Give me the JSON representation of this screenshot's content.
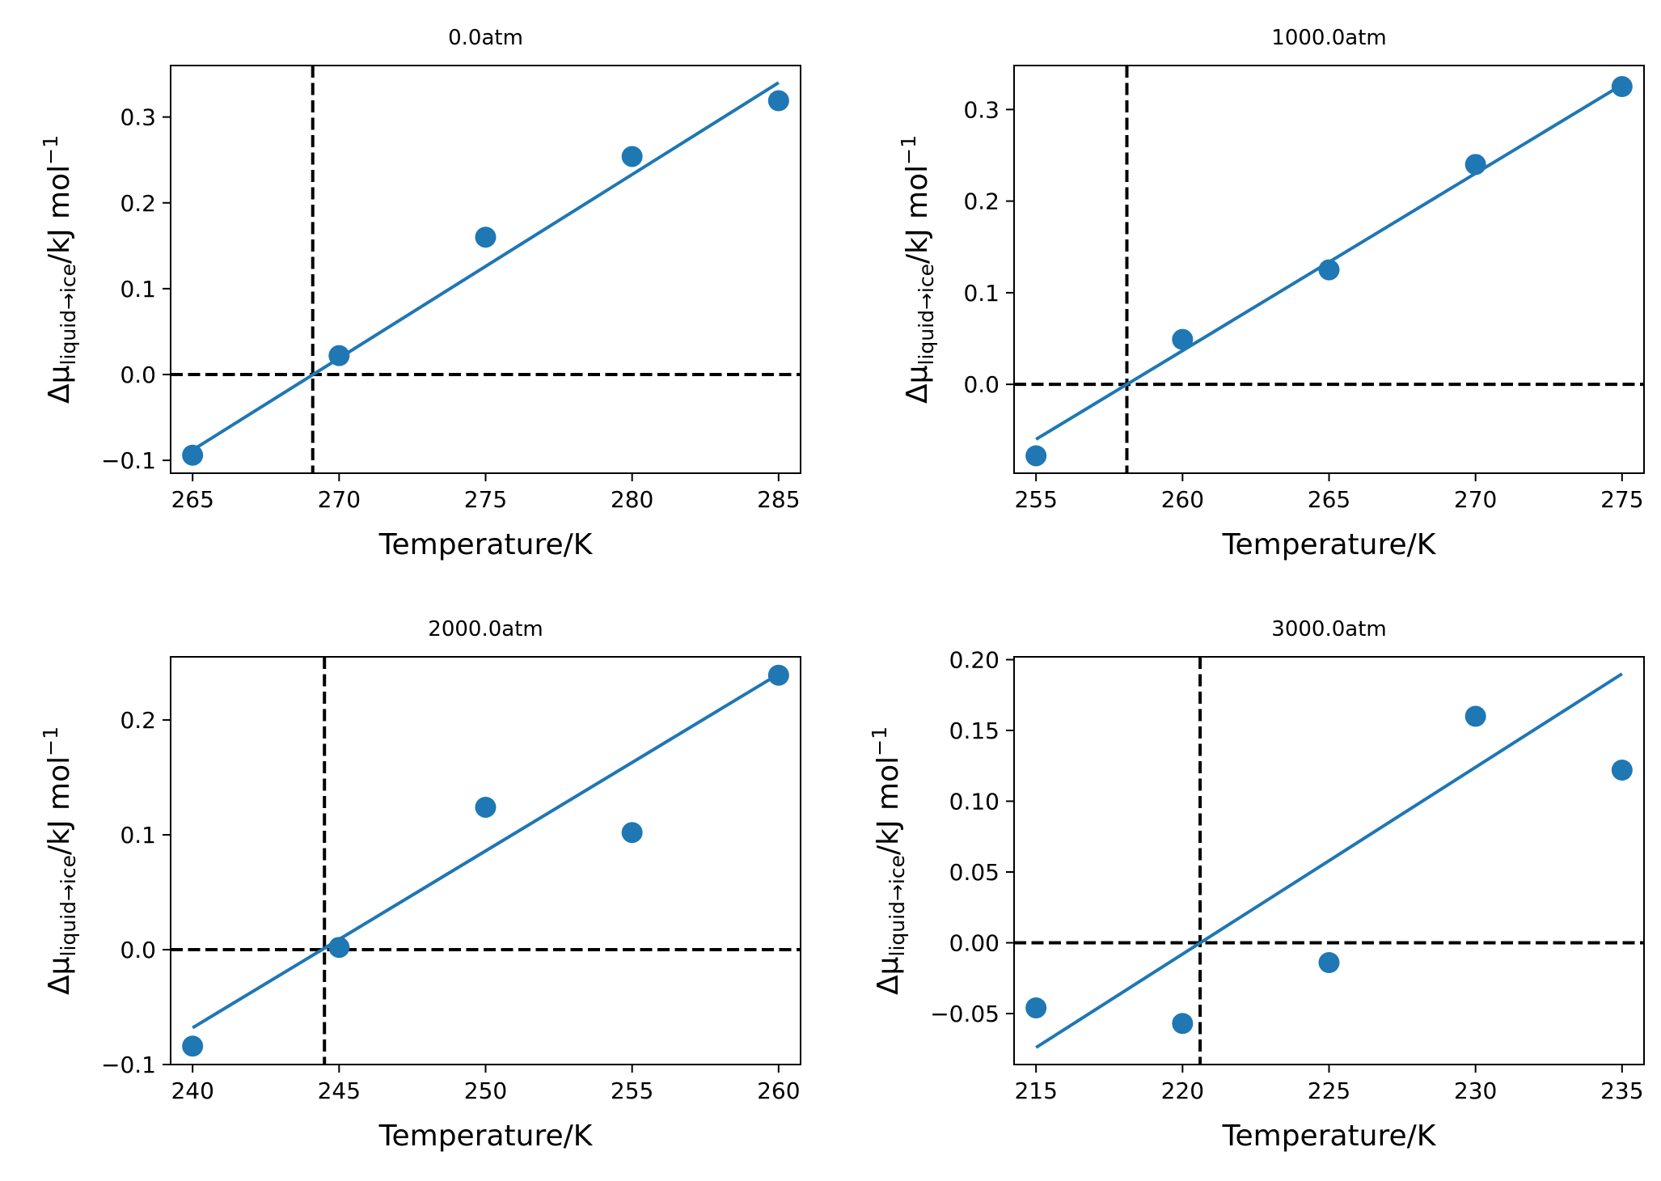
{
  "chart_data": [
    {
      "type": "scatter",
      "title": "0.0atm",
      "xlabel": "Temperature/K",
      "ylabel": {
        "main": "Δμ",
        "sub": "liquid→ice",
        "unit": "/kJ mol",
        "sup": "−1"
      },
      "xlim": [
        264.25,
        285.75
      ],
      "ylim": [
        -0.115,
        0.36
      ],
      "xticks": [
        265,
        270,
        275,
        280,
        285
      ],
      "xtick_labels": [
        "265",
        "270",
        "275",
        "280",
        "285"
      ],
      "yticks": [
        -0.1,
        0.0,
        0.1,
        0.2,
        0.3
      ],
      "ytick_labels": [
        "−0.1",
        "0.0",
        "0.1",
        "0.2",
        "0.3"
      ],
      "points": {
        "x": [
          265,
          270,
          275,
          280,
          285
        ],
        "y": [
          -0.094,
          0.022,
          0.16,
          0.254,
          0.319
        ]
      },
      "fit_line": {
        "x": [
          265,
          285
        ],
        "y": [
          -0.088,
          0.34
        ]
      },
      "vline": 269.1,
      "hline": 0.0,
      "colors": {
        "series": "#1f77b4",
        "reference": "#000000"
      }
    },
    {
      "type": "scatter",
      "title": "1000.0atm",
      "xlabel": "Temperature/K",
      "ylabel": {
        "main": "Δμ",
        "sub": "liquid→ice",
        "unit": "/kJ mol",
        "sup": "−1"
      },
      "xlim": [
        254.25,
        275.75
      ],
      "ylim": [
        -0.097,
        0.348
      ],
      "xticks": [
        255,
        260,
        265,
        270,
        275
      ],
      "xtick_labels": [
        "255",
        "260",
        "265",
        "270",
        "275"
      ],
      "yticks": [
        0.0,
        0.1,
        0.2,
        0.3
      ],
      "ytick_labels": [
        "0.0",
        "0.1",
        "0.2",
        "0.3"
      ],
      "points": {
        "x": [
          255,
          260,
          265,
          270,
          275
        ],
        "y": [
          -0.078,
          0.049,
          0.125,
          0.24,
          0.325
        ]
      },
      "fit_line": {
        "x": [
          255,
          275
        ],
        "y": [
          -0.06,
          0.327
        ]
      },
      "vline": 258.1,
      "hline": 0.0,
      "colors": {
        "series": "#1f77b4",
        "reference": "#000000"
      }
    },
    {
      "type": "scatter",
      "title": "2000.0atm",
      "xlabel": "Temperature/K",
      "ylabel": {
        "main": "Δμ",
        "sub": "liquid→ice",
        "unit": "/kJ mol",
        "sup": "−1"
      },
      "xlim": [
        239.25,
        260.75
      ],
      "ylim": [
        -0.1,
        0.255
      ],
      "xticks": [
        240,
        245,
        250,
        255,
        260
      ],
      "xtick_labels": [
        "240",
        "245",
        "250",
        "255",
        "260"
      ],
      "yticks": [
        -0.1,
        0.0,
        0.1,
        0.2
      ],
      "ytick_labels": [
        "−0.1",
        "0.0",
        "0.1",
        "0.2"
      ],
      "points": {
        "x": [
          240,
          245,
          250,
          255,
          260
        ],
        "y": [
          -0.084,
          0.002,
          0.124,
          0.102,
          0.239
        ]
      },
      "fit_line": {
        "x": [
          240,
          260
        ],
        "y": [
          -0.068,
          0.24
        ]
      },
      "vline": 244.5,
      "hline": 0.0,
      "colors": {
        "series": "#1f77b4",
        "reference": "#000000"
      }
    },
    {
      "type": "scatter",
      "title": "3000.0atm",
      "xlabel": "Temperature/K",
      "ylabel": {
        "main": "Δμ",
        "sub": "liquid→ice",
        "unit": "/kJ mol",
        "sup": "−1"
      },
      "xlim": [
        214.25,
        235.75
      ],
      "ylim": [
        -0.086,
        0.202
      ],
      "xticks": [
        215,
        220,
        225,
        230,
        235
      ],
      "xtick_labels": [
        "215",
        "220",
        "225",
        "230",
        "235"
      ],
      "yticks": [
        -0.05,
        0.0,
        0.05,
        0.1,
        0.15,
        0.2
      ],
      "ytick_labels": [
        "−0.05",
        "0.00",
        "0.05",
        "0.10",
        "0.15",
        "0.20"
      ],
      "points": {
        "x": [
          215,
          220,
          225,
          230,
          235
        ],
        "y": [
          -0.046,
          -0.057,
          -0.014,
          0.16,
          0.122
        ]
      },
      "fit_line": {
        "x": [
          215,
          235
        ],
        "y": [
          -0.074,
          0.19
        ]
      },
      "vline": 220.6,
      "hline": 0.0,
      "colors": {
        "series": "#1f77b4",
        "reference": "#000000"
      }
    }
  ]
}
